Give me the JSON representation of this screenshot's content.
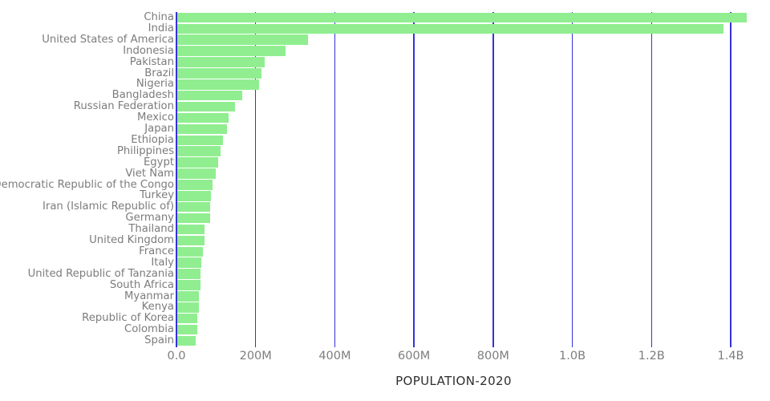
{
  "chart_data": {
    "type": "bar",
    "orientation": "horizontal",
    "title": "",
    "xlabel": "POPULATION-2020",
    "ylabel": "",
    "xlim": [
      0,
      1400000000
    ],
    "grid": "vertical",
    "legend": "none",
    "bar_color": "#90EE90",
    "gridline_color": "#3532d8",
    "label_color": "#7c7c7c",
    "tick_label_color": "#7d7d7d",
    "axis_title_color": "#2e2e2e",
    "x_ticks": [
      {
        "value": 0,
        "label": "0.0"
      },
      {
        "value": 200000000,
        "label": "200M"
      },
      {
        "value": 400000000,
        "label": "400M"
      },
      {
        "value": 600000000,
        "label": "600M"
      },
      {
        "value": 800000000,
        "label": "800M"
      },
      {
        "value": 1000000000,
        "label": "1.0B"
      },
      {
        "value": 1200000000,
        "label": "1.2B"
      },
      {
        "value": 1400000000,
        "label": "1.4B"
      }
    ],
    "categories": [
      "China",
      "India",
      "United States of America",
      "Indonesia",
      "Pakistan",
      "Brazil",
      "Nigeria",
      "Bangladesh",
      "Russian Federation",
      "Mexico",
      "Japan",
      "Ethiopia",
      "Philippines",
      "Egypt",
      "Viet Nam",
      "Democratic Republic of the Congo",
      "Turkey",
      "Iran (Islamic Republic of)",
      "Germany",
      "Thailand",
      "United Kingdom",
      "France",
      "Italy",
      "United Republic of Tanzania",
      "South Africa",
      "Myanmar",
      "Kenya",
      "Republic of Korea",
      "Colombia",
      "Spain"
    ],
    "values": [
      1439323776,
      1380004385,
      331002651,
      273523615,
      220892340,
      212559417,
      206139589,
      164689383,
      145934462,
      128932753,
      126476461,
      114963588,
      109581078,
      102334404,
      97338579,
      89561403,
      84339067,
      83992949,
      83783942,
      69799978,
      67886011,
      65273511,
      60461826,
      59734218,
      59308690,
      54409800,
      53771296,
      51269185,
      50882891,
      46754778
    ]
  }
}
